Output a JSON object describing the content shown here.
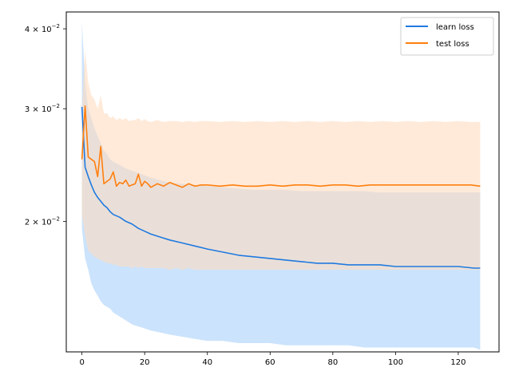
{
  "chart_data": {
    "type": "line",
    "title": "",
    "xlabel": "",
    "ylabel": "",
    "xlim": [
      -5,
      133
    ],
    "ylim": [
      0.0125,
      0.0425
    ],
    "yscale": "log",
    "grid": false,
    "legend": {
      "placement": "top-right",
      "entries": [
        "learn loss",
        "test loss"
      ]
    },
    "xticks": [
      {
        "value": 0,
        "label": "0"
      },
      {
        "value": 20,
        "label": "20"
      },
      {
        "value": 40,
        "label": "40"
      },
      {
        "value": 60,
        "label": "60"
      },
      {
        "value": 80,
        "label": "80"
      },
      {
        "value": 100,
        "label": "100"
      },
      {
        "value": 120,
        "label": "120"
      }
    ],
    "yticks": [
      {
        "value": 0.02,
        "mantissa": "2",
        "exponent": "−2"
      },
      {
        "value": 0.03,
        "mantissa": "3",
        "exponent": "−2"
      },
      {
        "value": 0.04,
        "mantissa": "4",
        "exponent": "−2"
      }
    ],
    "series": [
      {
        "name": "learn loss",
        "color": "#1f7ae0",
        "band_color": "#b9d9fb",
        "x": [
          0,
          1,
          2,
          3,
          4,
          5,
          6,
          7,
          8,
          9,
          10,
          12,
          14,
          16,
          18,
          20,
          22,
          25,
          28,
          32,
          36,
          40,
          45,
          50,
          55,
          60,
          65,
          70,
          75,
          80,
          85,
          90,
          95,
          100,
          105,
          110,
          115,
          120,
          125,
          127
        ],
        "y": [
          0.0302,
          0.0243,
          0.0235,
          0.0228,
          0.0222,
          0.0218,
          0.0215,
          0.0212,
          0.021,
          0.0207,
          0.0205,
          0.0203,
          0.02,
          0.0198,
          0.0195,
          0.0193,
          0.0191,
          0.0189,
          0.0187,
          0.0185,
          0.0183,
          0.0181,
          0.0179,
          0.0177,
          0.0176,
          0.0175,
          0.0174,
          0.0173,
          0.0172,
          0.0172,
          0.0171,
          0.0171,
          0.0171,
          0.017,
          0.017,
          0.017,
          0.017,
          0.017,
          0.0169,
          0.0169
        ],
        "lower": [
          0.0195,
          0.0175,
          0.0168,
          0.016,
          0.0156,
          0.0153,
          0.015,
          0.0148,
          0.0147,
          0.0146,
          0.0144,
          0.0142,
          0.014,
          0.0138,
          0.0137,
          0.0136,
          0.0135,
          0.0134,
          0.0133,
          0.0132,
          0.0131,
          0.013,
          0.013,
          0.0129,
          0.0129,
          0.0129,
          0.0128,
          0.0128,
          0.0128,
          0.0128,
          0.0128,
          0.0127,
          0.0127,
          0.0127,
          0.0127,
          0.0127,
          0.0127,
          0.0127,
          0.0127,
          0.0126
        ],
        "upper": [
          0.041,
          0.033,
          0.03,
          0.029,
          0.028,
          0.0272,
          0.0265,
          0.0258,
          0.0255,
          0.025,
          0.0248,
          0.0245,
          0.0242,
          0.024,
          0.0238,
          0.0236,
          0.0234,
          0.0232,
          0.023,
          0.0229,
          0.0228,
          0.0227,
          0.0226,
          0.0225,
          0.0224,
          0.0224,
          0.0224,
          0.0223,
          0.0223,
          0.0223,
          0.0223,
          0.0223,
          0.0222,
          0.0222,
          0.0222,
          0.0222,
          0.0222,
          0.0222,
          0.0222,
          0.0222
        ]
      },
      {
        "name": "test loss",
        "color": "#ff7f0e",
        "band_color": "#ffdcbf",
        "x": [
          0,
          1,
          2,
          3,
          4,
          5,
          6,
          7,
          8,
          9,
          10,
          11,
          12,
          13,
          14,
          15,
          16,
          17,
          18,
          19,
          20,
          21,
          22,
          24,
          26,
          28,
          30,
          32,
          34,
          36,
          38,
          40,
          44,
          48,
          52,
          56,
          60,
          64,
          68,
          72,
          76,
          80,
          84,
          88,
          92,
          96,
          100,
          104,
          108,
          112,
          116,
          120,
          124,
          127
        ],
        "y": [
          0.025,
          0.0303,
          0.0252,
          0.025,
          0.0248,
          0.0235,
          0.0262,
          0.0229,
          0.0231,
          0.0233,
          0.0239,
          0.0227,
          0.023,
          0.0229,
          0.0232,
          0.0227,
          0.0228,
          0.0229,
          0.0237,
          0.0227,
          0.0231,
          0.0229,
          0.0226,
          0.0229,
          0.0227,
          0.023,
          0.0228,
          0.0226,
          0.0229,
          0.0227,
          0.0228,
          0.0228,
          0.0227,
          0.0228,
          0.0227,
          0.0227,
          0.0228,
          0.0227,
          0.0228,
          0.0228,
          0.0227,
          0.0228,
          0.0228,
          0.0227,
          0.0228,
          0.0228,
          0.0228,
          0.0228,
          0.0228,
          0.0228,
          0.0228,
          0.0228,
          0.0228,
          0.0227
        ],
        "lower": [
          0.0205,
          0.019,
          0.018,
          0.0178,
          0.0176,
          0.0175,
          0.0174,
          0.0173,
          0.0172,
          0.0172,
          0.0171,
          0.0171,
          0.017,
          0.017,
          0.017,
          0.017,
          0.0169,
          0.017,
          0.0169,
          0.017,
          0.0169,
          0.0169,
          0.0169,
          0.0169,
          0.0169,
          0.0168,
          0.0169,
          0.0168,
          0.0169,
          0.0168,
          0.0168,
          0.0168,
          0.0168,
          0.0168,
          0.0168,
          0.0168,
          0.0168,
          0.0168,
          0.0168,
          0.0168,
          0.0168,
          0.0168,
          0.0168,
          0.0168,
          0.0168,
          0.0168,
          0.0168,
          0.0168,
          0.0168,
          0.0168,
          0.0168,
          0.0168,
          0.0168,
          0.0168
        ],
        "upper": [
          0.03,
          0.037,
          0.033,
          0.0315,
          0.031,
          0.03,
          0.0315,
          0.0295,
          0.0295,
          0.029,
          0.0292,
          0.0288,
          0.029,
          0.0288,
          0.029,
          0.0287,
          0.0288,
          0.0288,
          0.029,
          0.0287,
          0.0289,
          0.0287,
          0.0286,
          0.0288,
          0.0286,
          0.0287,
          0.0287,
          0.0286,
          0.0287,
          0.0286,
          0.0287,
          0.0287,
          0.0286,
          0.0287,
          0.0286,
          0.0287,
          0.0286,
          0.0287,
          0.0286,
          0.0287,
          0.0286,
          0.0287,
          0.0286,
          0.0287,
          0.0286,
          0.0287,
          0.0286,
          0.0287,
          0.0286,
          0.0287,
          0.0286,
          0.0287,
          0.0286,
          0.0286
        ]
      }
    ]
  }
}
